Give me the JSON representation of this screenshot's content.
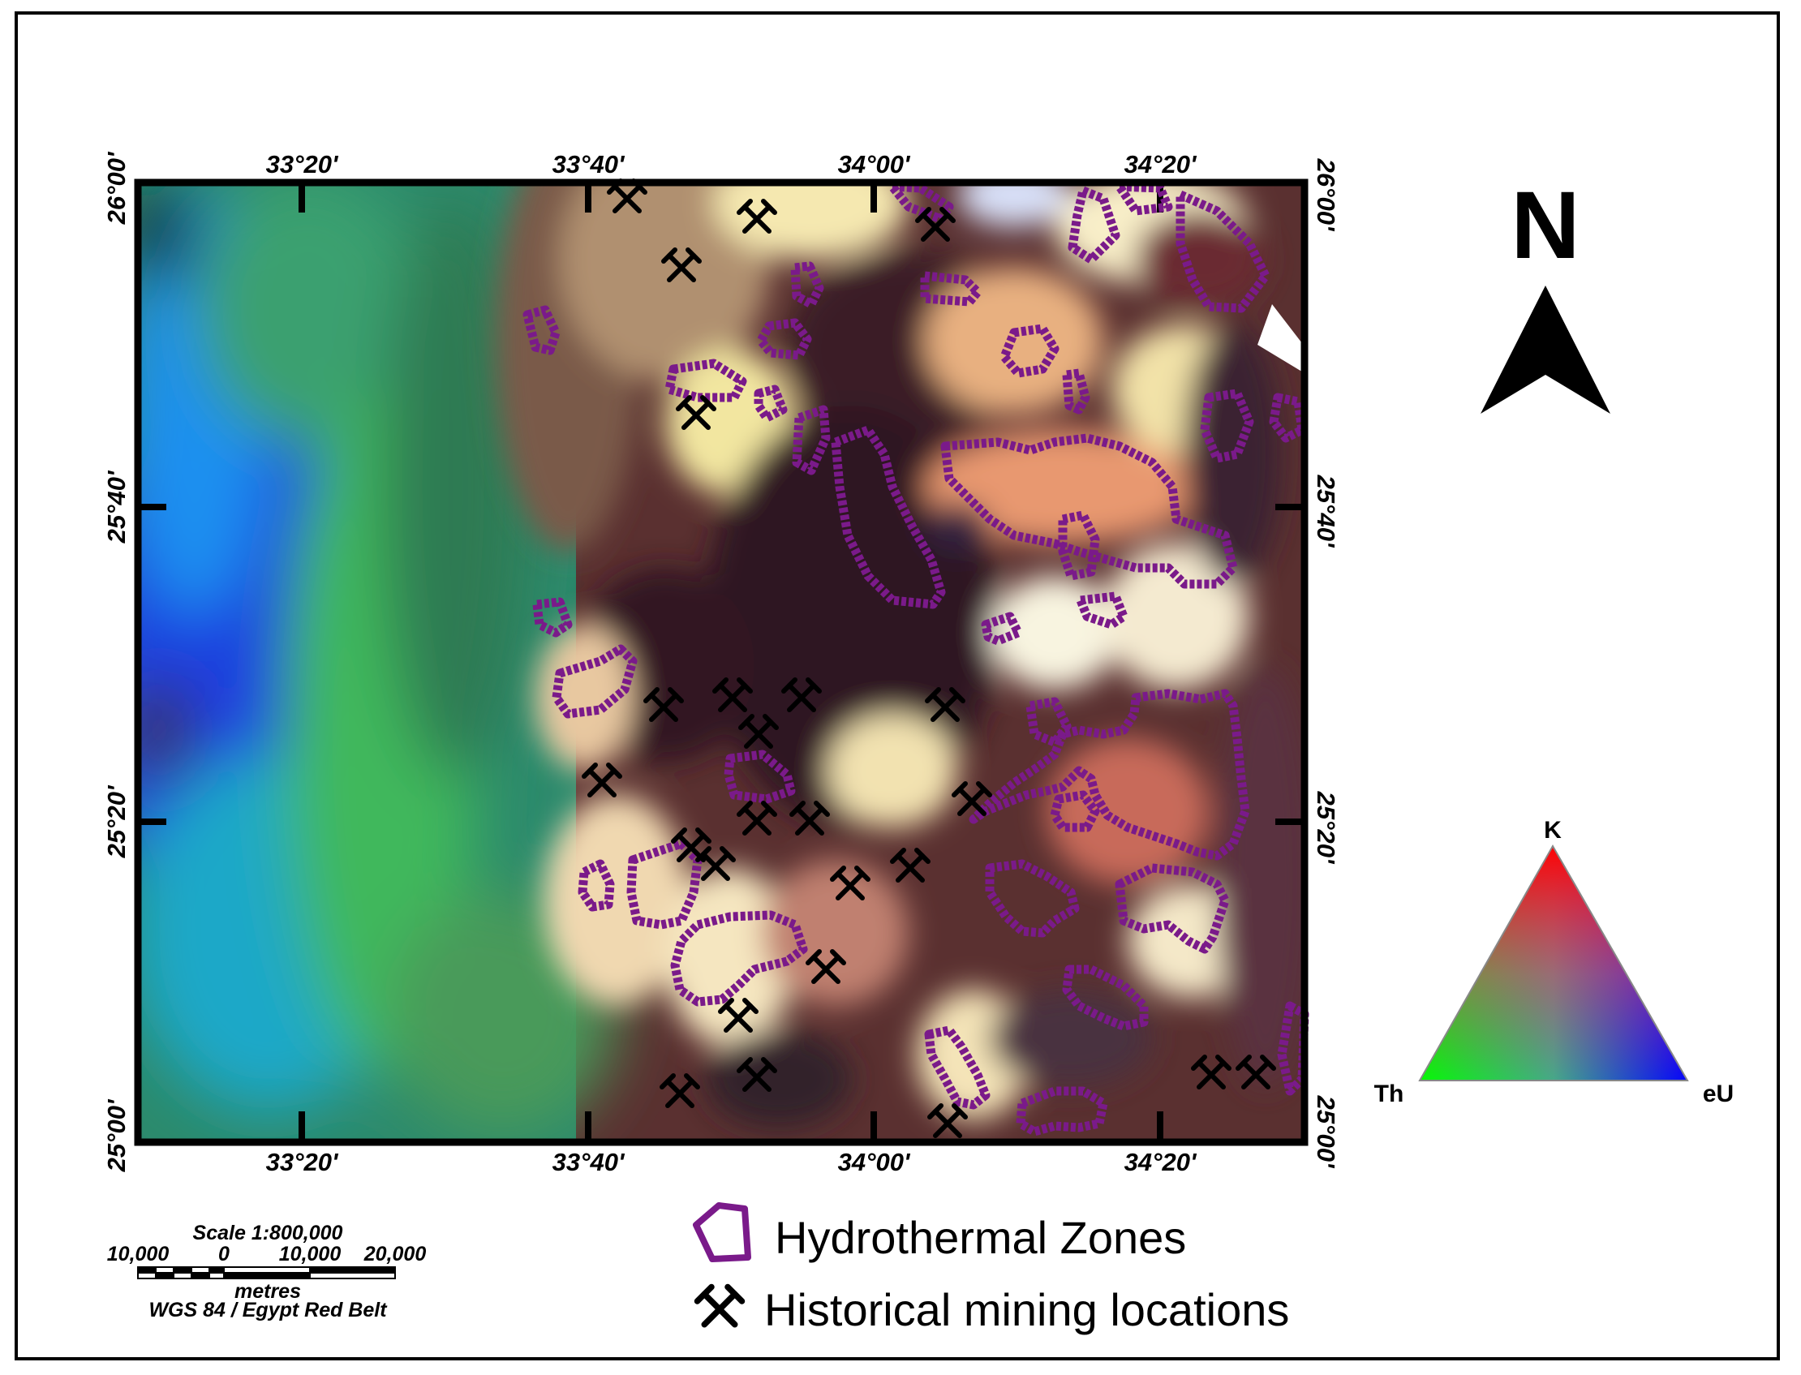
{
  "top_axis_labels": [
    "33°20'",
    "33°40'",
    "34°00'",
    "34°20'"
  ],
  "bottom_axis_labels": [
    "33°20'",
    "33°40'",
    "34°00'",
    "34°20'"
  ],
  "left_axis_labels": [
    "26°00'",
    "25°40'",
    "25°20'",
    "25°00'"
  ],
  "right_axis_labels": [
    "26°00'",
    "25°40'",
    "25°20'",
    "25°00'"
  ],
  "north_arrow": {
    "label": "N",
    "icon": "north-arrow-icon"
  },
  "ternary_legend": {
    "top": "K",
    "left": "Th",
    "right": "eU"
  },
  "scale_bar": {
    "title": "Scale 1:800,000",
    "ticks": [
      "10,000",
      "0",
      "10,000",
      "20,000"
    ],
    "unit": "metres",
    "projection": "WGS 84 / Egypt Red Belt"
  },
  "legend": {
    "hydrothermal": "Hydrothermal Zones",
    "mining": "Historical mining locations"
  },
  "colors": {
    "hydrothermal_outline": "#7a1a8a",
    "mining_symbol": "#000000"
  }
}
